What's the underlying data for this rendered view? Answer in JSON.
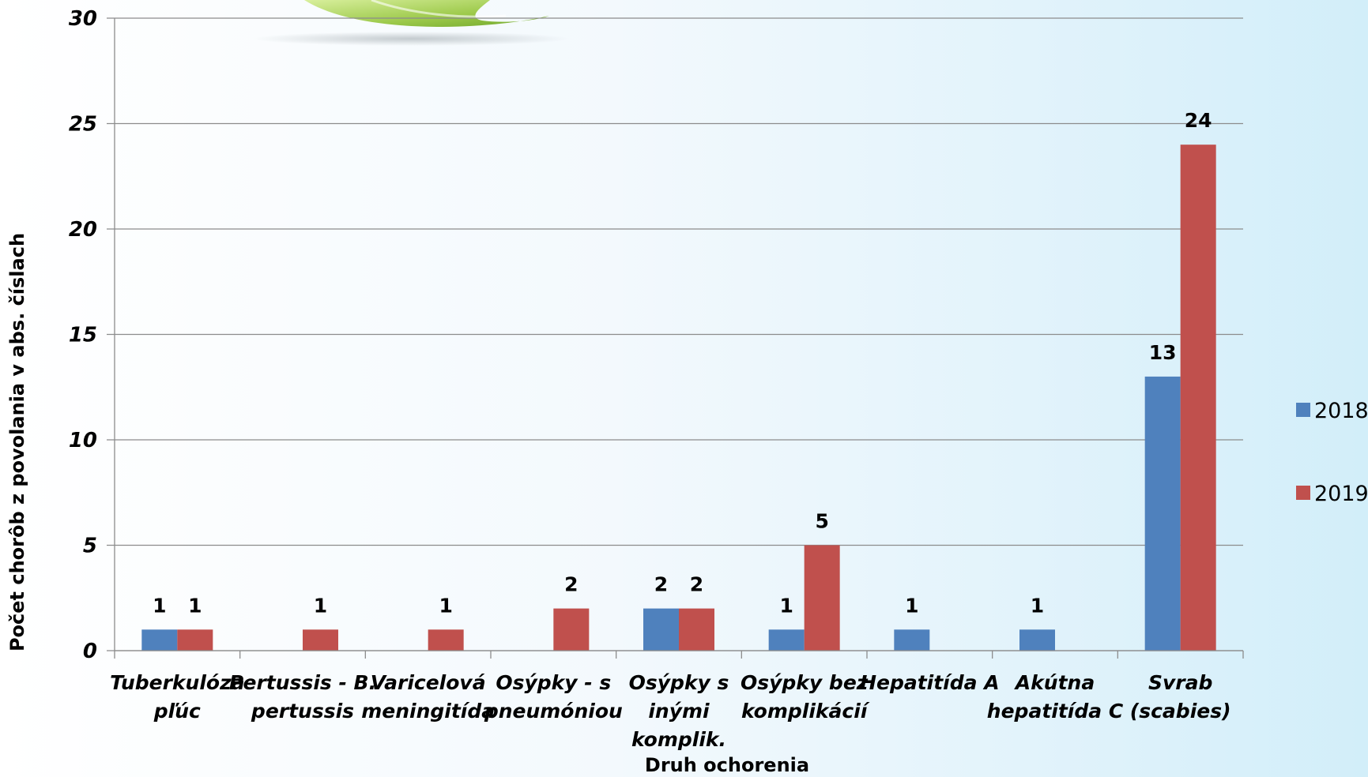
{
  "chart_data": {
    "type": "bar",
    "categories": [
      [
        "Tuberkulóza",
        "pľúc"
      ],
      [
        "Pertussis - B.",
        "pertussis"
      ],
      [
        "Varicelová",
        "meningitída"
      ],
      [
        "Osýpky - s",
        "pneumóniou"
      ],
      [
        "Osýpky s",
        "inými",
        "komplik."
      ],
      [
        "Osýpky bez",
        "komplikácií"
      ],
      [
        "Hepatitída A"
      ],
      [
        "Akútna",
        "hepatitída C"
      ],
      [
        "Svrab",
        "(scabies)"
      ]
    ],
    "series": [
      {
        "name": "2018",
        "color": "#4f81bd",
        "values": [
          1,
          null,
          null,
          null,
          2,
          1,
          1,
          1,
          13
        ]
      },
      {
        "name": "2019",
        "color": "#c0504d",
        "values": [
          1,
          1,
          1,
          2,
          2,
          5,
          null,
          null,
          24
        ]
      }
    ],
    "xlabel": "Druh ochorenia",
    "ylabel": "Počet chorôb z povolania v abs. číslach",
    "ylim": [
      0,
      30
    ],
    "yticks": [
      0,
      5,
      10,
      15,
      20,
      25,
      30
    ],
    "grid": true,
    "legend_position": "right",
    "data_labels": true
  }
}
